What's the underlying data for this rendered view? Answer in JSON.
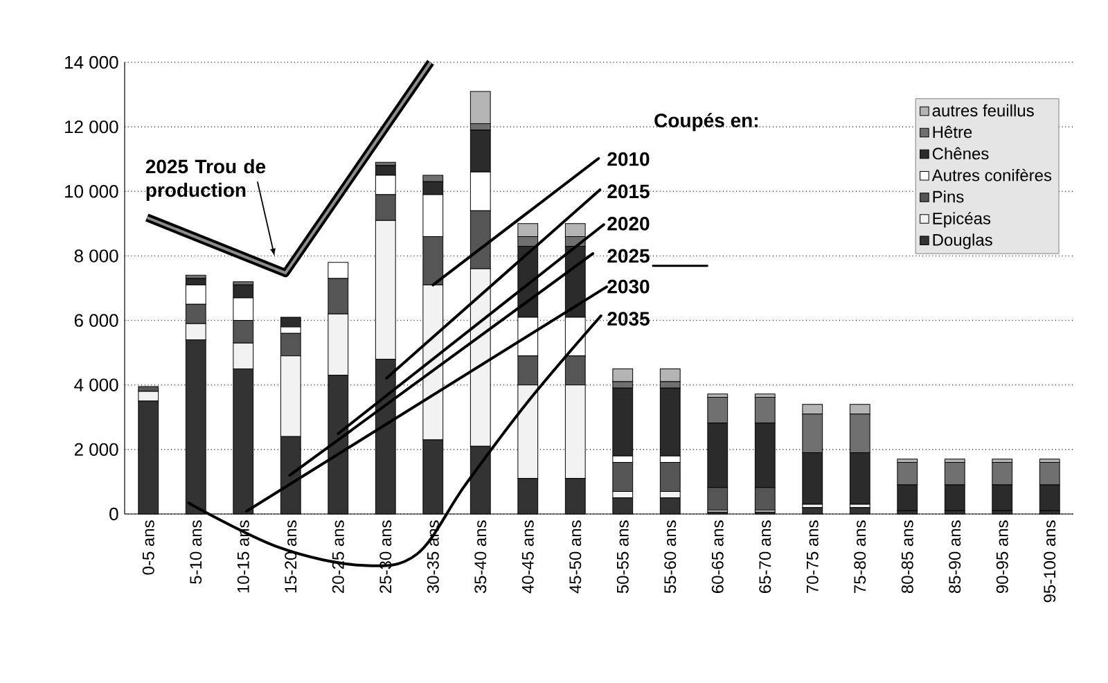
{
  "chart_data": {
    "type": "bar",
    "stacked": true,
    "legend": "top right",
    "grid": "y",
    "categories": [
      "0-5 ans",
      "5-10 ans",
      "10-15 ans",
      "15-20 ans",
      "20-25 ans",
      "25-30 ans",
      "30-35 ans",
      "35-40 ans",
      "40-45 ans",
      "45-50 ans",
      "50-55 ans",
      "55-60 ans",
      "60-65 ans",
      "65-70 ans",
      "70-75 ans",
      "75-80 ans",
      "80-85 ans",
      "85-90 ans",
      "90-95 ans",
      "95-100 ans"
    ],
    "series": [
      {
        "name": "Douglas",
        "color": "#333333",
        "values": [
          3500,
          5400,
          4500,
          2400,
          4300,
          4800,
          2300,
          2100,
          1100,
          1100,
          500,
          500,
          60,
          60,
          200,
          200,
          100,
          100,
          100,
          100
        ]
      },
      {
        "name": "Epicéas",
        "color": "#f2f2f2",
        "values": [
          300,
          500,
          800,
          2500,
          1900,
          4300,
          4800,
          5500,
          2900,
          2900,
          200,
          200,
          60,
          60,
          100,
          100,
          0,
          0,
          0,
          0
        ]
      },
      {
        "name": "Pins",
        "color": "#555555",
        "values": [
          150,
          600,
          700,
          700,
          1100,
          800,
          1500,
          1800,
          900,
          900,
          900,
          900,
          700,
          700,
          0,
          0,
          0,
          0,
          0,
          0
        ]
      },
      {
        "name": "Autres conifères",
        "color": "#ffffff",
        "values": [
          0,
          600,
          700,
          200,
          500,
          600,
          1300,
          1200,
          1200,
          1200,
          200,
          200,
          0,
          0,
          0,
          0,
          0,
          0,
          0,
          0
        ]
      },
      {
        "name": "Chênes",
        "color": "#2b2b2b",
        "values": [
          0,
          200,
          400,
          300,
          0,
          300,
          400,
          1300,
          2200,
          2200,
          2100,
          2100,
          2000,
          2000,
          1600,
          1600,
          800,
          800,
          800,
          800
        ]
      },
      {
        "name": "Hêtre",
        "color": "#707070",
        "values": [
          0,
          100,
          100,
          0,
          0,
          100,
          200,
          200,
          300,
          300,
          200,
          200,
          800,
          800,
          1200,
          1200,
          700,
          700,
          700,
          700
        ]
      },
      {
        "name": "autres feuillus",
        "color": "#b4b4b4",
        "values": [
          0,
          0,
          0,
          0,
          0,
          0,
          0,
          1000,
          400,
          400,
          400,
          400,
          100,
          100,
          300,
          300,
          100,
          100,
          100,
          100
        ]
      }
    ],
    "ylim": [
      0,
      14000
    ],
    "yticks": [
      0,
      {
        "value": 2000,
        "label": "2 000"
      },
      {
        "value": 4000,
        "label": "4 000"
      },
      {
        "value": 6000,
        "label": "6 000"
      },
      {
        "value": 8000,
        "label": "8 000"
      },
      {
        "value": 10000,
        "label": "10 000"
      },
      {
        "value": 12000,
        "label": "12 000"
      },
      {
        "value": 14000,
        "label": "14 000"
      }
    ],
    "annotations": [
      "2025 Trou de production",
      "Coupés en:",
      {
        "text": "2010",
        "x": "30-35 ans",
        "y": 7100
      },
      "2015",
      "2020",
      "2025",
      "2030",
      "2035"
    ]
  }
}
